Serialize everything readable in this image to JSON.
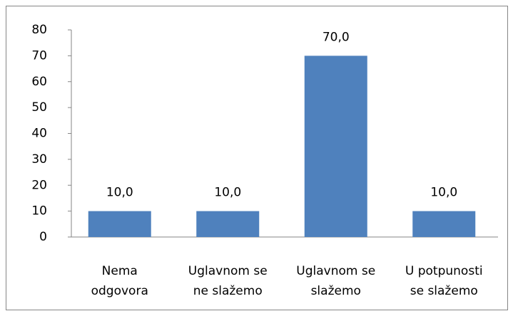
{
  "chart_data": {
    "type": "bar",
    "categories": [
      [
        "Nema",
        "odgovora"
      ],
      [
        "Uglavnom se",
        "ne slažemo"
      ],
      [
        "Uglavnom se",
        "slažemo"
      ],
      [
        "U potpunosti",
        "se slažemo"
      ]
    ],
    "values": [
      10,
      10,
      70,
      10
    ],
    "value_labels": [
      "10,0",
      "10,0",
      "70,0",
      "10,0"
    ],
    "color": "#4f81bd",
    "ylim": [
      0,
      80
    ],
    "yticks": [
      0,
      10,
      20,
      30,
      40,
      50,
      60,
      70,
      80
    ],
    "grid": false
  }
}
